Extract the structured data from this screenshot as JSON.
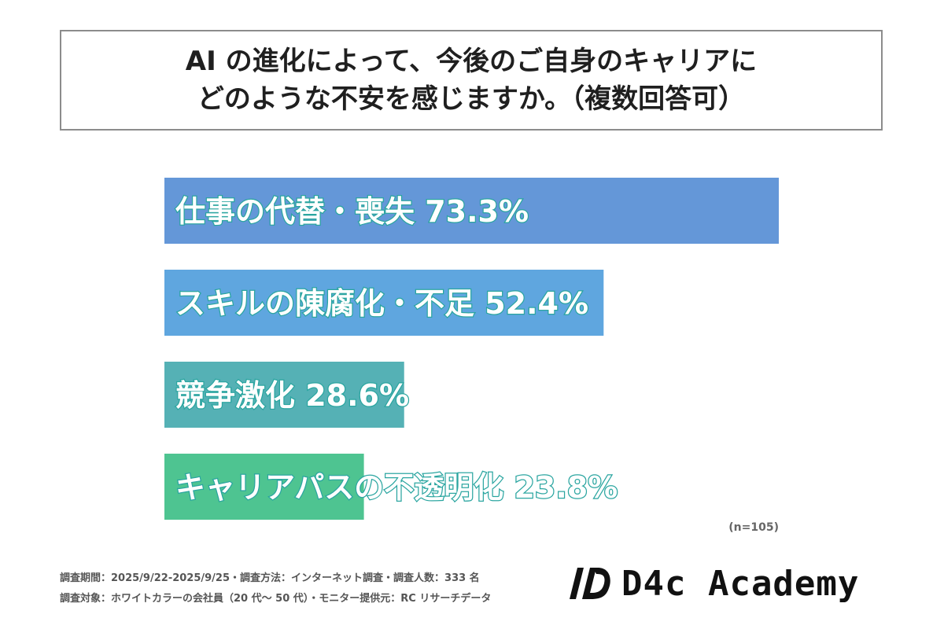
{
  "title": {
    "line1": "AI の進化によって、今後のご自身のキャリアに",
    "line2": "どのような不安を感じますか。（複数回答可）"
  },
  "chart_data": {
    "type": "bar",
    "orientation": "horizontal",
    "categories": [
      "仕事の代替・喪失",
      "スキルの陳腐化・不足",
      "競争激化",
      "キャリアパスの不透明化"
    ],
    "values": [
      73.3,
      52.4,
      28.6,
      23.8
    ],
    "value_labels": [
      "73.3%",
      "52.4%",
      "28.6%",
      "23.8%"
    ],
    "colors": [
      "#6497d8",
      "#5fa6df",
      "#55b1b5",
      "#4ec491"
    ],
    "xlim": [
      0,
      73.3
    ],
    "grid": false,
    "legend": "none"
  },
  "sample_size": "(n=105)",
  "footnotes": {
    "line1": "調査期間：2025/9/22-2025/9/25・調査方法：インターネット調査・調査人数：333 名",
    "line2": "調査対象：ホワイトカラーの会社員（20 代〜 50 代）・モニター提供元：RC リサーチデータ"
  },
  "logo": {
    "text": "D4c Academy",
    "icon": "d4c-logo-icon"
  }
}
